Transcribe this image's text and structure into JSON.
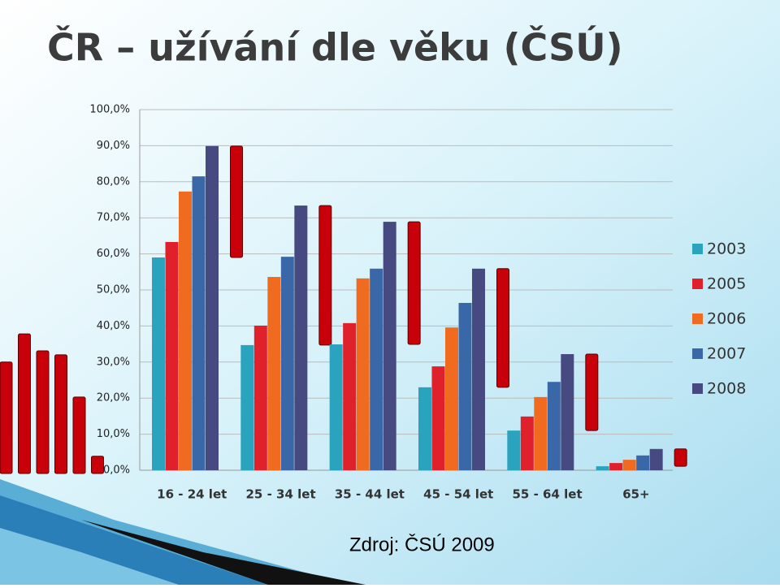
{
  "title": "ČR – užívání dle věku (ČSÚ)",
  "source": "Zdroj: ČSÚ 2009",
  "chart_data": {
    "type": "bar",
    "categories": [
      "16 - 24 let",
      "25 - 34 let",
      "35 - 44 let",
      "45 - 54 let",
      "55 - 64 let",
      "65+"
    ],
    "series": [
      {
        "name": "2003",
        "color": "#2aa3bf",
        "values": [
          59.0,
          34.7,
          34.9,
          23.0,
          11.0,
          1.1
        ]
      },
      {
        "name": "2005",
        "color": "#e0202a",
        "values": [
          63.3,
          40.1,
          40.8,
          28.8,
          14.9,
          2.0
        ]
      },
      {
        "name": "2006",
        "color": "#f06a20",
        "values": [
          77.3,
          53.6,
          53.2,
          39.6,
          20.3,
          2.9
        ]
      },
      {
        "name": "2007",
        "color": "#3a67a8",
        "values": [
          81.5,
          59.2,
          55.9,
          46.4,
          24.5,
          4.1
        ]
      },
      {
        "name": "2008",
        "color": "#464a80",
        "values": [
          89.9,
          73.4,
          68.9,
          55.9,
          32.2,
          5.9
        ]
      }
    ],
    "ylim": [
      0,
      100
    ],
    "yticks": [
      {
        "value": 0,
        "label": "0,0%"
      },
      {
        "value": 10,
        "label": "10,0%"
      },
      {
        "value": 20,
        "label": "20,0%"
      },
      {
        "value": 30,
        "label": "30,0%"
      },
      {
        "value": 40,
        "label": "40,0%"
      },
      {
        "value": 50,
        "label": "50,0%"
      },
      {
        "value": 60,
        "label": "60,0%"
      },
      {
        "value": 70,
        "label": "70,0%"
      },
      {
        "value": 80,
        "label": "80,0%"
      },
      {
        "value": 90,
        "label": "90,0%"
      },
      {
        "value": 100,
        "label": "100,0%"
      }
    ],
    "grid": true,
    "legend": "right",
    "range_color": "#c8000a"
  }
}
